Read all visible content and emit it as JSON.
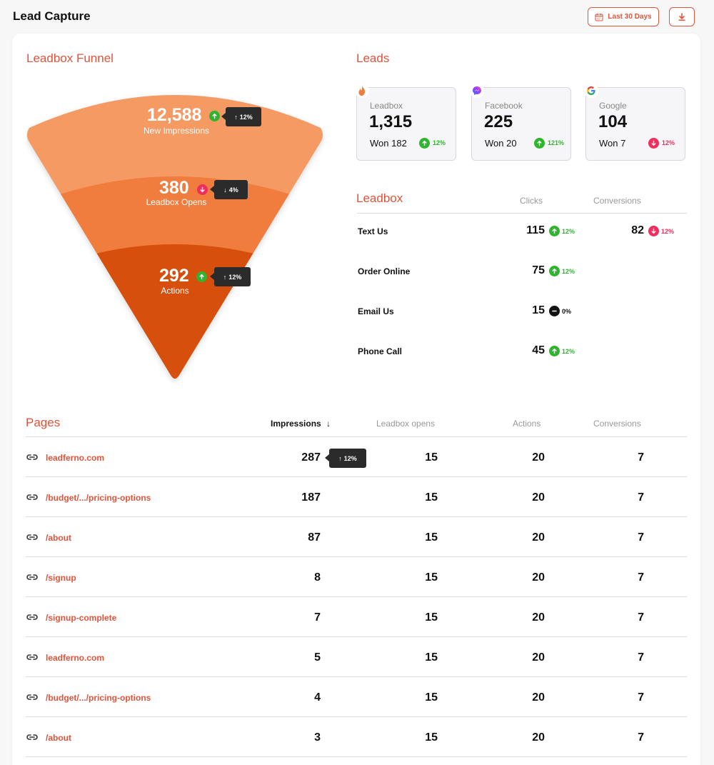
{
  "header": {
    "title": "Lead Capture",
    "date_range_label": "Last 30 Days",
    "date_icon": "calendar-icon",
    "download_icon": "download-icon"
  },
  "colors": {
    "accent": "#e2533a",
    "up": "#2eb52e",
    "down": "#ee2e5d",
    "funnel_top": "#f59a63",
    "funnel_mid": "#f07c3c",
    "funnel_bottom": "#d64f0a"
  },
  "funnel": {
    "title": "Leadbox Funnel",
    "stages": [
      {
        "value": "12,588",
        "label": "New Impressions",
        "trend": "up",
        "change": "12%"
      },
      {
        "value": "380",
        "label": "Leadbox Opens",
        "trend": "down",
        "change": "4%"
      },
      {
        "value": "292",
        "label": "Actions",
        "trend": "up",
        "change": "12%"
      }
    ]
  },
  "leads": {
    "title": "Leads",
    "cards": [
      {
        "source": "Leadbox",
        "icon": "flame-icon",
        "value": "1,315",
        "won": "Won 182",
        "trend": "up",
        "change": "12%"
      },
      {
        "source": "Facebook",
        "icon": "messenger-icon",
        "value": "225",
        "won": "Won 20",
        "trend": "up",
        "change": "121%"
      },
      {
        "source": "Google",
        "icon": "google-icon",
        "value": "104",
        "won": "Won 7",
        "trend": "down",
        "change": "12%"
      }
    ]
  },
  "leadbox_table": {
    "title": "Leadbox",
    "col_clicks": "Clicks",
    "col_conversions": "Conversions",
    "rows": [
      {
        "label": "Text Us",
        "clicks": "115",
        "clicks_trend": "up",
        "clicks_change": "12%",
        "conversions": "82",
        "conv_trend": "down",
        "conv_change": "12%"
      },
      {
        "label": "Order Online",
        "clicks": "75",
        "clicks_trend": "up",
        "clicks_change": "12%"
      },
      {
        "label": "Email Us",
        "clicks": "15",
        "clicks_trend": "neutral",
        "clicks_change": "0%"
      },
      {
        "label": "Phone Call",
        "clicks": "45",
        "clicks_trend": "up",
        "clicks_change": "12%"
      }
    ]
  },
  "pages": {
    "title": "Pages",
    "col_impressions": "Impressions",
    "col_opens": "Leadbox opens",
    "col_actions": "Actions",
    "col_conversions": "Conversions",
    "highlight_tip": "12%",
    "rows": [
      {
        "url": "leadferno.com",
        "impressions": "287",
        "opens": "15",
        "actions": "20",
        "conversions": "7"
      },
      {
        "url": "/budget/.../pricing-options",
        "impressions": "187",
        "opens": "15",
        "actions": "20",
        "conversions": "7"
      },
      {
        "url": "/about",
        "impressions": "87",
        "opens": "15",
        "actions": "20",
        "conversions": "7"
      },
      {
        "url": "/signup",
        "impressions": "8",
        "opens": "15",
        "actions": "20",
        "conversions": "7"
      },
      {
        "url": "/signup-complete",
        "impressions": "7",
        "opens": "15",
        "actions": "20",
        "conversions": "7"
      },
      {
        "url": "leadferno.com",
        "impressions": "5",
        "opens": "15",
        "actions": "20",
        "conversions": "7"
      },
      {
        "url": "/budget/.../pricing-options",
        "impressions": "4",
        "opens": "15",
        "actions": "20",
        "conversions": "7"
      },
      {
        "url": "/about",
        "impressions": "3",
        "opens": "15",
        "actions": "20",
        "conversions": "7"
      }
    ]
  }
}
